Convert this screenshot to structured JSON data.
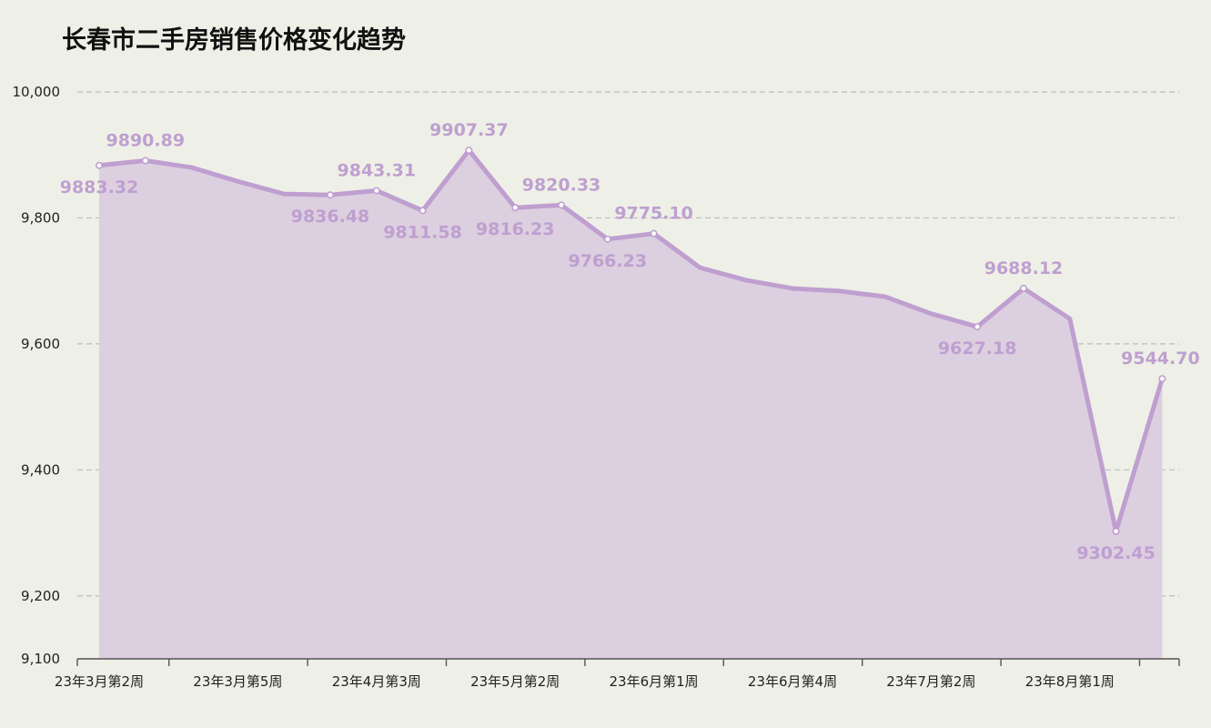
{
  "title": "长春市二手房销售价格变化趋势",
  "colors": {
    "background": "#eef0e7",
    "line": "#bf9fd0",
    "area": "#dccfdf",
    "label": "#bf9fd0",
    "grid": "#bcbcbc"
  },
  "chart_data": {
    "type": "area",
    "title": "长春市二手房销售价格变化趋势",
    "xlabel": "",
    "ylabel": "",
    "ylim": [
      9100,
      10000
    ],
    "yticks": [
      9100,
      9200,
      9400,
      9600,
      9800,
      10000
    ],
    "ytick_labels": [
      "9,100",
      "9,200",
      "9,400",
      "9,600",
      "9,800",
      "10,000"
    ],
    "grid": true,
    "x_tick_labels": [
      {
        "index": 0,
        "label": "23年3月第2周"
      },
      {
        "index": 3,
        "label": "23年3月第5周"
      },
      {
        "index": 6,
        "label": "23年4月第3周"
      },
      {
        "index": 9,
        "label": "23年5月第2周"
      },
      {
        "index": 12,
        "label": "23年6月第1周"
      },
      {
        "index": 15,
        "label": "23年6月第4周"
      },
      {
        "index": 18,
        "label": "23年7月第2周"
      },
      {
        "index": 21,
        "label": "23年8月第1周"
      }
    ],
    "values": [
      9883.32,
      9890.89,
      9880,
      9858,
      9838,
      9836.48,
      9843.31,
      9811.58,
      9907.37,
      9816.23,
      9820.33,
      9766.23,
      9775.1,
      9721,
      9701,
      9688,
      9684,
      9675,
      9648,
      9627.18,
      9688.12,
      9640,
      9302.45,
      9544.7
    ],
    "data_labels": [
      {
        "index": 0,
        "text": "9883.32",
        "pos": "below"
      },
      {
        "index": 1,
        "text": "9890.89",
        "pos": "above"
      },
      {
        "index": 5,
        "text": "9836.48",
        "pos": "below"
      },
      {
        "index": 6,
        "text": "9843.31",
        "pos": "above"
      },
      {
        "index": 7,
        "text": "9811.58",
        "pos": "below"
      },
      {
        "index": 8,
        "text": "9907.37",
        "pos": "above"
      },
      {
        "index": 9,
        "text": "9816.23",
        "pos": "below"
      },
      {
        "index": 10,
        "text": "9820.33",
        "pos": "above"
      },
      {
        "index": 11,
        "text": "9766.23",
        "pos": "below"
      },
      {
        "index": 12,
        "text": "9775.10",
        "pos": "above"
      },
      {
        "index": 19,
        "text": "9627.18",
        "pos": "below"
      },
      {
        "index": 20,
        "text": "9688.12",
        "pos": "above"
      },
      {
        "index": 22,
        "text": "9302.45",
        "pos": "below"
      },
      {
        "index": 23,
        "text": "9544.70",
        "pos": "above"
      }
    ]
  }
}
